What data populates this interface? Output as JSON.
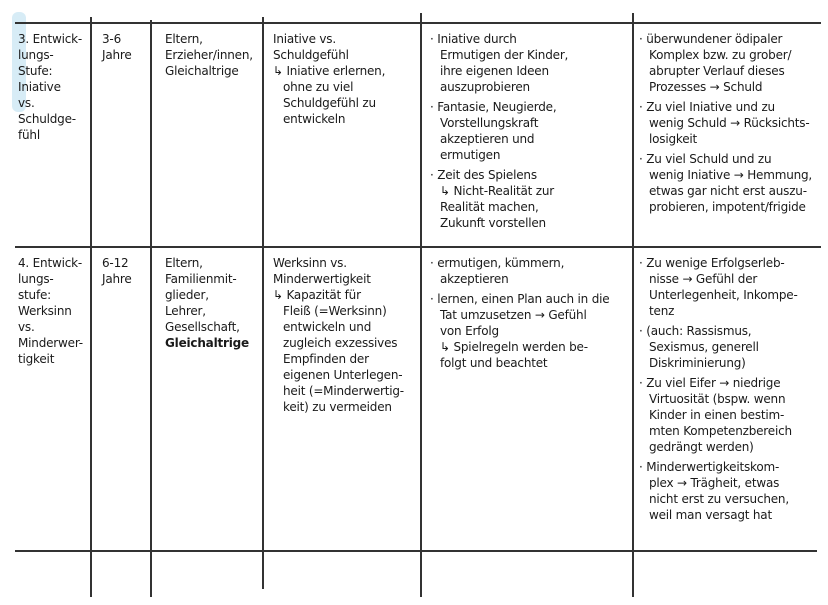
{
  "rows": [
    {
      "stage": [
        "3. Entwick-",
        "lungs-",
        "Stufe:",
        "Iniative",
        "vs.",
        "Schuldge-",
        "fühl"
      ],
      "age": [
        "3-6",
        "Jahre"
      ],
      "persons": [
        "Eltern,",
        "Erzieher/innen,",
        "Gleichaltrige"
      ],
      "conflict": [
        "Iniative vs.",
        "Schuldgefühl",
        "↳ Iniative erlernen,",
        "ohne zu viel",
        "Schuldgefühl zu",
        "entwickeln"
      ],
      "support": [
        [
          "· Iniative durch",
          "Ermutigen der Kinder,",
          "ihre eigenen Ideen",
          "auszuprobieren"
        ],
        [
          "· Fantasie, Neugierde,",
          "Vorstellungskraft",
          "akzeptieren und",
          "ermutigen"
        ],
        [
          "· Zeit des Spielens",
          "↳ Nicht-Realität zur",
          "Realität machen,",
          "Zukunft vorstellen"
        ]
      ],
      "problems": [
        [
          "· überwundener ödipaler",
          "Komplex bzw. zu grober/",
          "abrupter Verlauf dieses",
          "Prozesses → Schuld"
        ],
        [
          "· Zu viel Iniative und zu",
          "wenig Schuld → Rücksichts-",
          "losigkeit"
        ],
        [
          "· Zu viel Schuld und zu",
          "wenig Iniative → Hemmung,",
          "etwas gar nicht erst auszu-",
          "probieren, impotent/frigide"
        ]
      ]
    },
    {
      "stage": [
        "4. Entwick-",
        "lungs-",
        "stufe:",
        "Werksinn",
        "vs.",
        "Minderwer-",
        "tigkeit"
      ],
      "age": [
        "6-12",
        "Jahre"
      ],
      "persons": [
        "Eltern,",
        "Familienmit-",
        "glieder,",
        "Lehrer,",
        "Gesellschaft,"
      ],
      "persons_bold": "Gleichaltrige",
      "conflict": [
        "Werksinn vs.",
        "Minderwertigkeit",
        "↳ Kapazität für",
        "Fleiß (=Werksinn)",
        "entwickeln und",
        "zugleich exzessives",
        "Empfinden der",
        "eigenen Unterlegen-",
        "heit (=Minderwertig-",
        "keit) zu vermeiden"
      ],
      "support": [
        [
          "· ermutigen, kümmern,",
          "akzeptieren"
        ],
        [
          "· lernen, einen Plan auch in die",
          "Tat umzusetzen → Gefühl",
          "von Erfolg",
          "↳ Spielregeln werden be-",
          "folgt und beachtet"
        ]
      ],
      "problems": [
        [
          "· Zu wenige Erfolgserleb-",
          "nisse → Gefühl der",
          "Unterlegenheit, Inkompe-",
          "tenz"
        ],
        [
          "· (auch: Rassismus,",
          "Sexismus, generell",
          "Diskriminierung)"
        ],
        [
          "· Zu viel Eifer → niedrige",
          "Virtuosität (bspw. wenn",
          "Kinder in einen bestim-",
          "mten Kompetenzbereich",
          "gedrängt werden)"
        ],
        [
          "· Minderwertigkeitskom-",
          "plex → Trägheit, etwas",
          "nicht erst zu versuchen,",
          "weil man versagt hat"
        ]
      ]
    }
  ],
  "colors": {
    "ink": "#1a1a1a",
    "lines": "#333333"
  }
}
